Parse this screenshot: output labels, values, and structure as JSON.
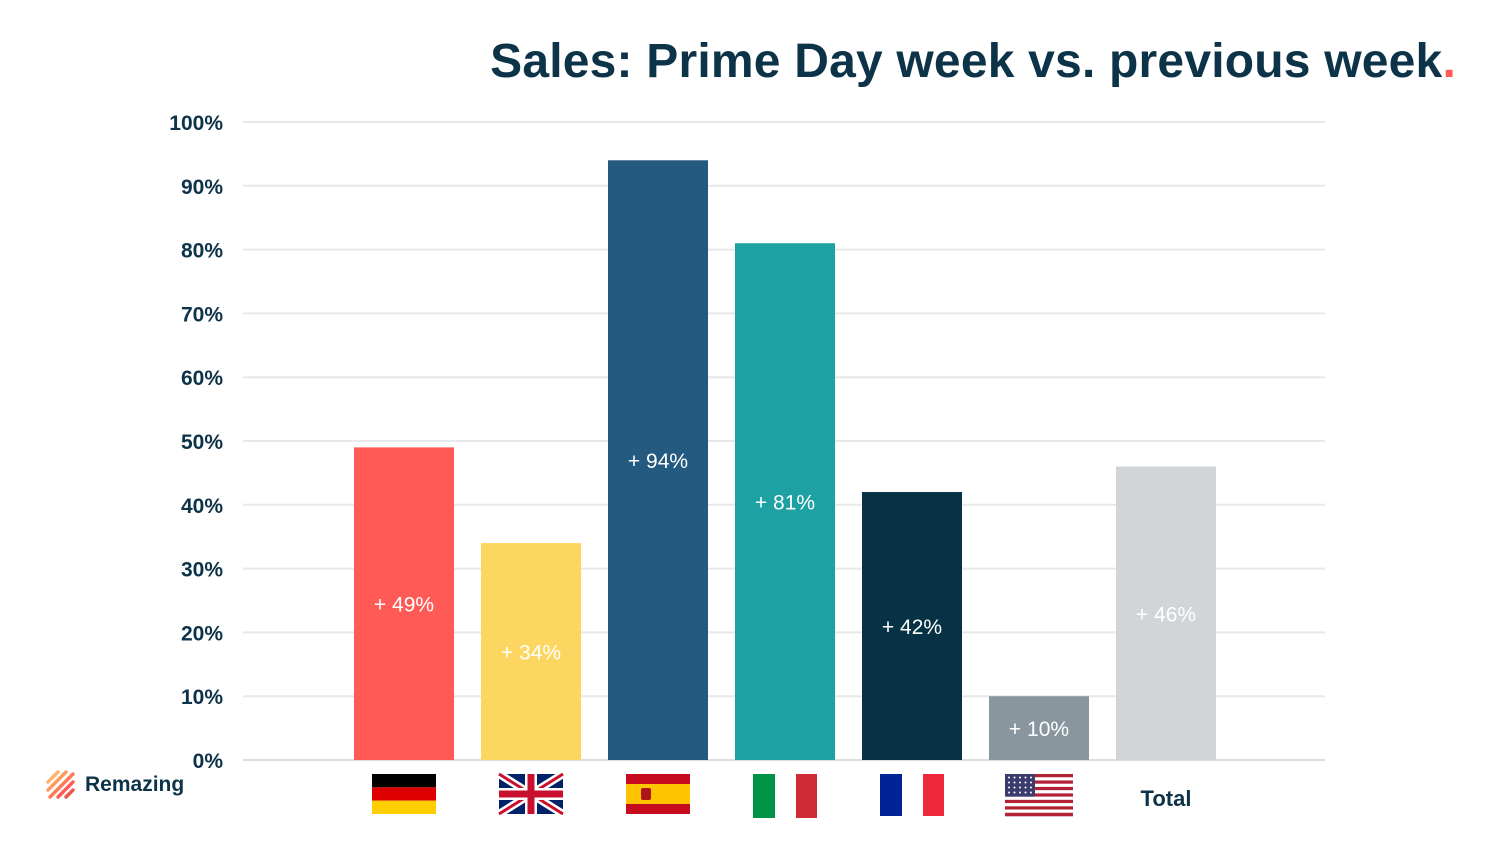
{
  "title": "Sales: Prime Day week vs. previous week",
  "title_dot": ".",
  "logo": {
    "text": "Remazing",
    "icon": "remazing-stripes-icon"
  },
  "chart_data": {
    "type": "bar",
    "categories": [
      "germany-flag",
      "uk-flag",
      "spain-flag",
      "italy-flag",
      "france-flag",
      "usa-flag",
      "Total"
    ],
    "values": [
      49,
      34,
      94,
      81,
      42,
      10,
      46
    ],
    "data_labels": [
      "+ 49%",
      "+ 34%",
      "+ 94%",
      "+ 81%",
      "+ 42%",
      "+ 10%",
      "+ 46%"
    ],
    "colors": [
      "#ff5a55",
      "#fdd662",
      "#245a80",
      "#1da1a3",
      "#073144",
      "#8a969e",
      "#d1d5d8"
    ],
    "yticks": [
      "0%",
      "10%",
      "20%",
      "30%",
      "40%",
      "50%",
      "60%",
      "70%",
      "80%",
      "90%",
      "100%"
    ],
    "ylim": [
      0,
      100
    ],
    "grid": true,
    "title": "Sales: Prime Day week vs. previous week",
    "xlabel": "",
    "ylabel": ""
  }
}
